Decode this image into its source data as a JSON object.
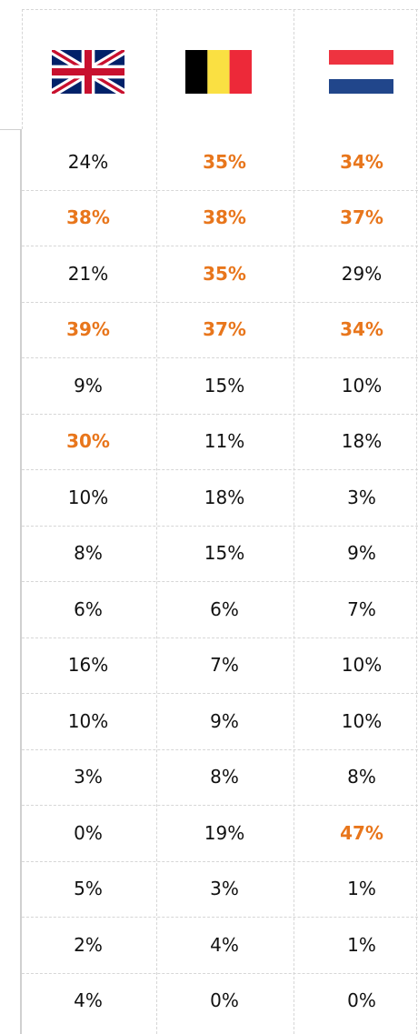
{
  "table": {
    "columns": [
      "United Kingdom",
      "Belgium",
      "Netherlands"
    ],
    "rows": [
      [
        "24%",
        "35%",
        "34%"
      ],
      [
        "38%",
        "38%",
        "37%"
      ],
      [
        "21%",
        "35%",
        "29%"
      ],
      [
        "39%",
        "37%",
        "34%"
      ],
      [
        "9%",
        "15%",
        "10%"
      ],
      [
        "30%",
        "11%",
        "18%"
      ],
      [
        "10%",
        "18%",
        "3%"
      ],
      [
        "8%",
        "15%",
        "9%"
      ],
      [
        "6%",
        "6%",
        "7%"
      ],
      [
        "16%",
        "7%",
        "10%"
      ],
      [
        "10%",
        "9%",
        "10%"
      ],
      [
        "3%",
        "8%",
        "8%"
      ],
      [
        "0%",
        "19%",
        "47%"
      ],
      [
        "5%",
        "3%",
        "1%"
      ],
      [
        "2%",
        "4%",
        "1%"
      ],
      [
        "4%",
        "0%",
        "0%"
      ]
    ],
    "highlight": [
      [
        false,
        true,
        true
      ],
      [
        true,
        true,
        true
      ],
      [
        false,
        true,
        false
      ],
      [
        true,
        true,
        true
      ],
      [
        false,
        false,
        false
      ],
      [
        true,
        false,
        false
      ],
      [
        false,
        false,
        false
      ],
      [
        false,
        false,
        false
      ],
      [
        false,
        false,
        false
      ],
      [
        false,
        false,
        false
      ],
      [
        false,
        false,
        false
      ],
      [
        false,
        false,
        false
      ],
      [
        false,
        false,
        true
      ],
      [
        false,
        false,
        false
      ],
      [
        false,
        false,
        false
      ],
      [
        false,
        false,
        false
      ]
    ]
  }
}
